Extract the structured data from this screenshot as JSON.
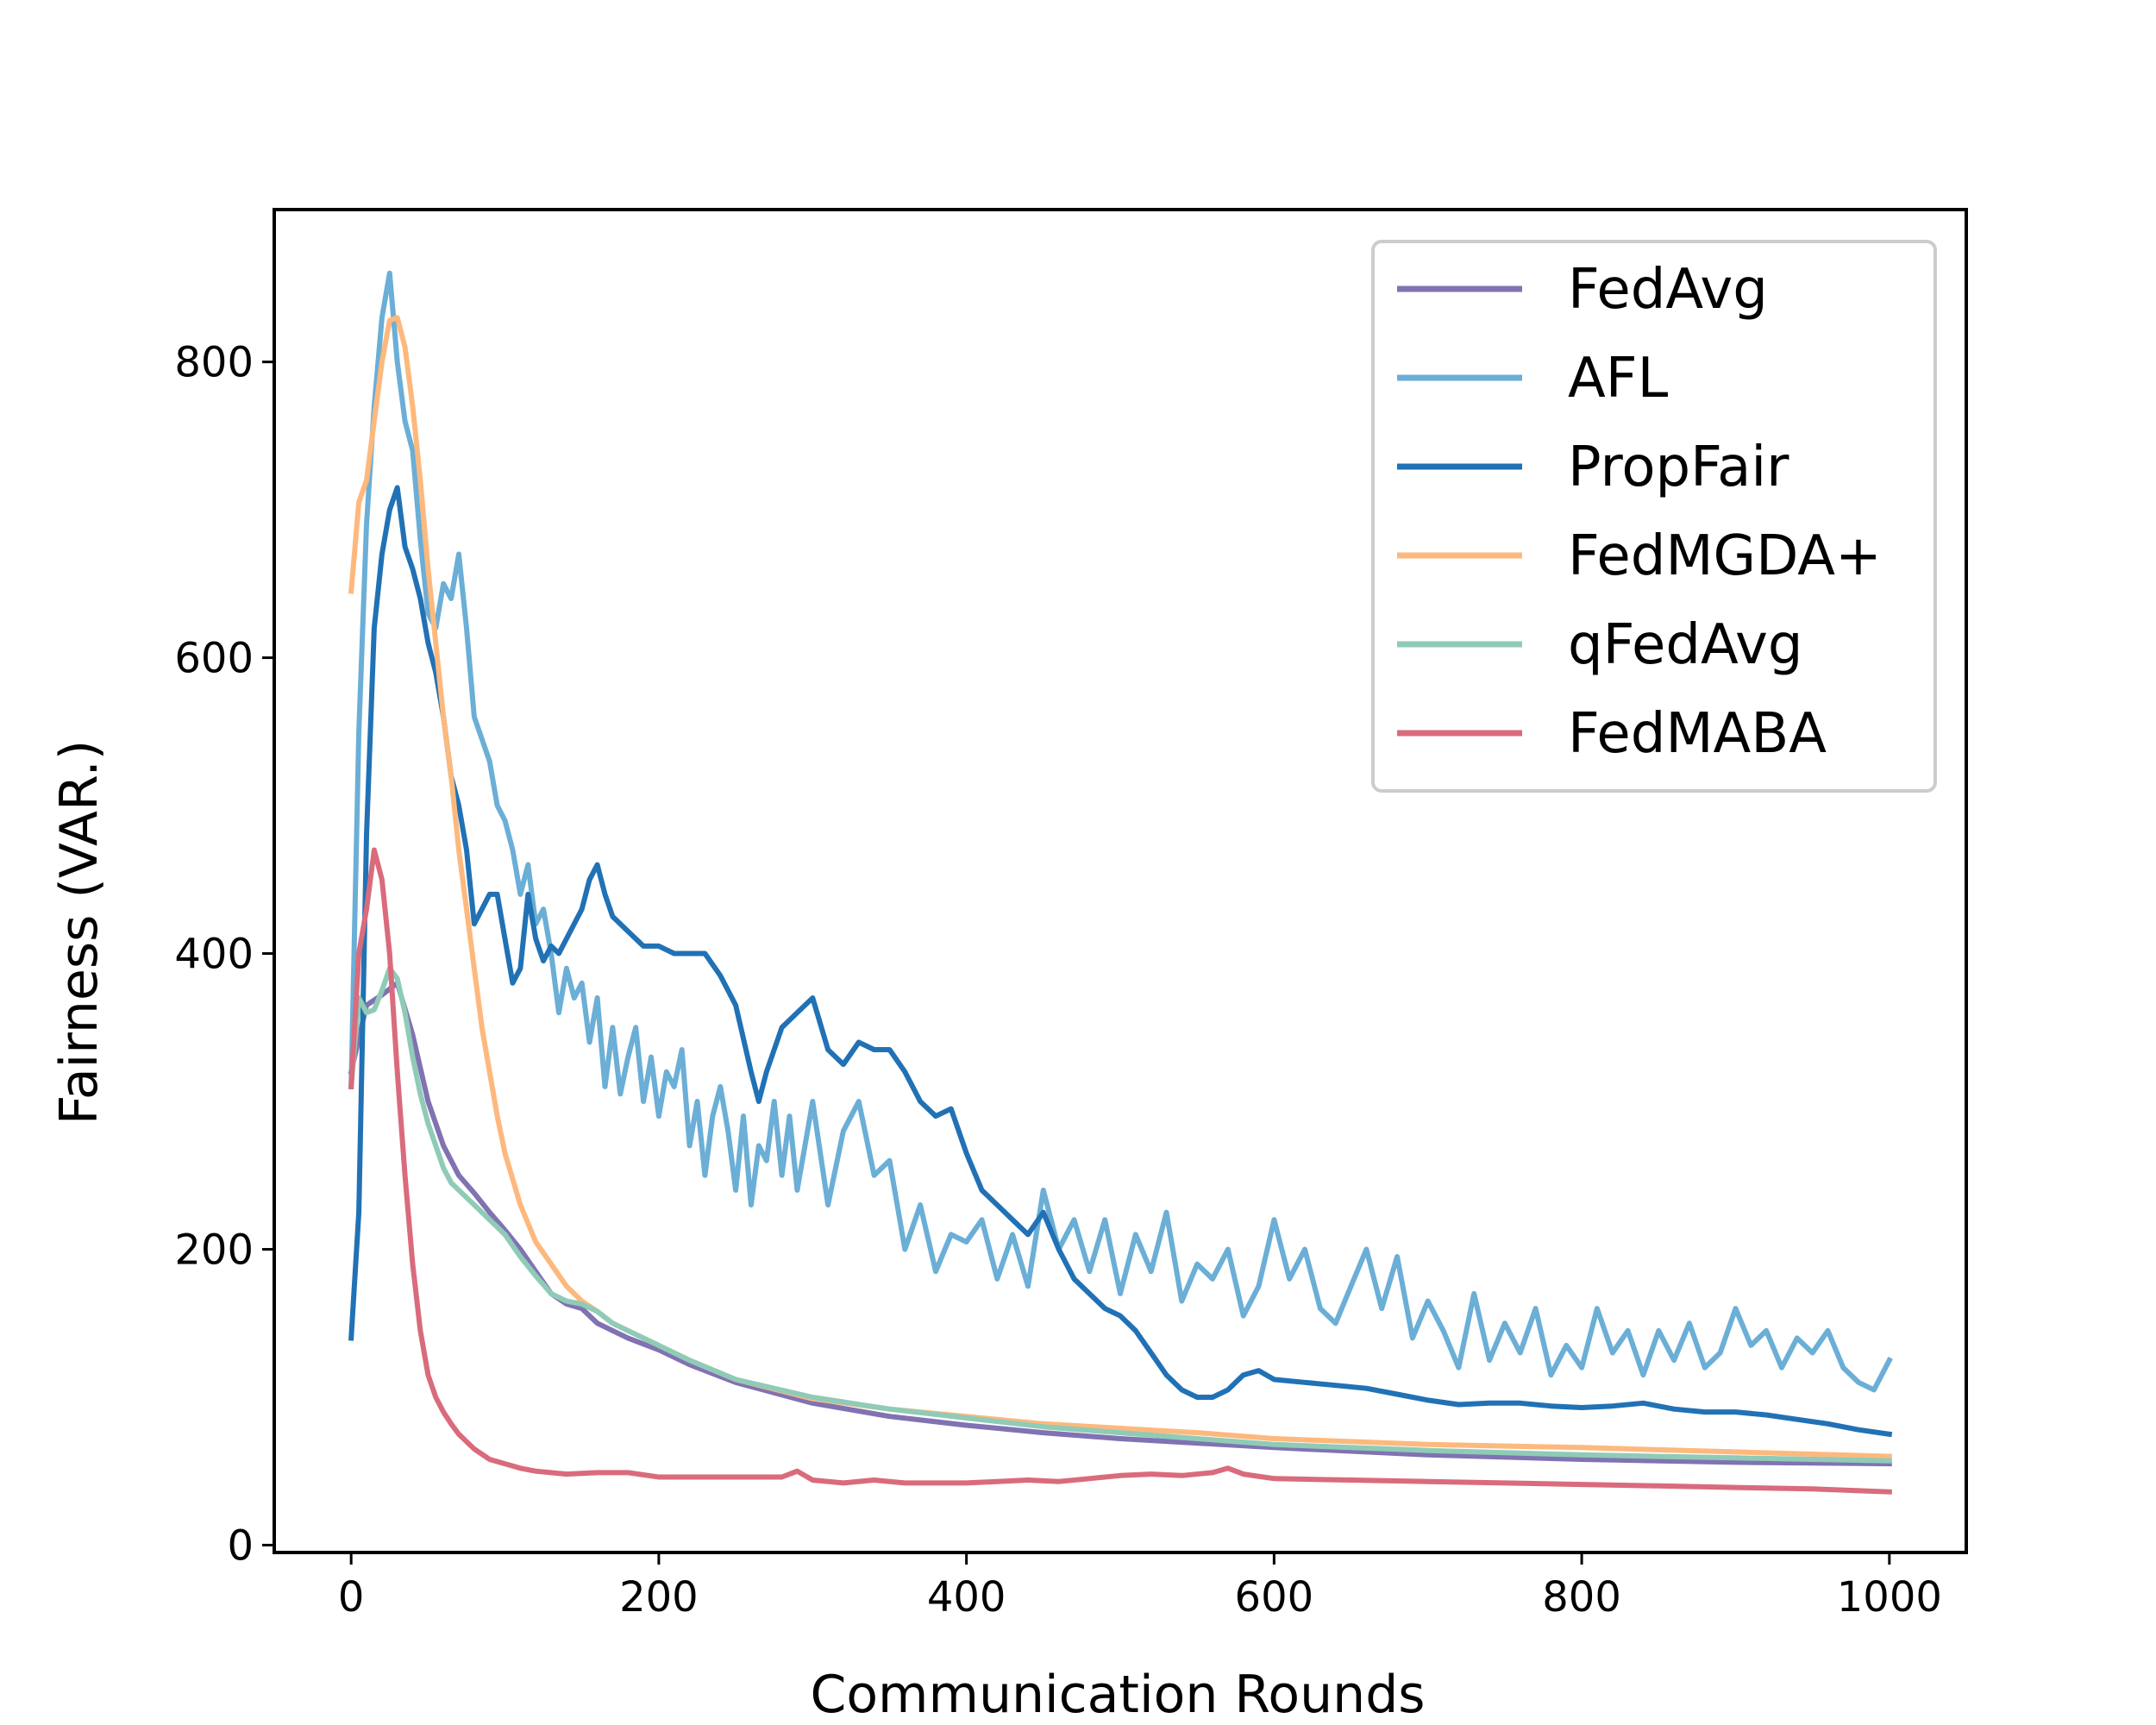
{
  "chart_data": {
    "type": "line",
    "title": "",
    "xlabel": "Communication Rounds",
    "ylabel": "Fairness (VAR.)",
    "xlim": [
      -50,
      1050
    ],
    "ylim": [
      -5,
      903
    ],
    "xticks": [
      0,
      200,
      400,
      600,
      800,
      1000
    ],
    "yticks": [
      0,
      200,
      400,
      600,
      800
    ],
    "grid": false,
    "legend_position": "top-right",
    "series": [
      {
        "name": "FedAvg",
        "color": "#8172b2",
        "x": [
          0,
          10,
          20,
          30,
          40,
          50,
          60,
          70,
          80,
          90,
          100,
          110,
          120,
          130,
          140,
          150,
          160,
          180,
          200,
          220,
          250,
          300,
          350,
          400,
          450,
          500,
          600,
          700,
          800,
          900,
          1000
        ],
        "y": [
          320,
          365,
          372,
          380,
          345,
          300,
          270,
          250,
          238,
          225,
          213,
          200,
          185,
          170,
          163,
          160,
          150,
          140,
          132,
          122,
          110,
          96,
          87,
          81,
          76,
          72,
          66,
          61,
          58,
          56,
          55
        ]
      },
      {
        "name": "AFL",
        "color": "#6baed6",
        "x": [
          0,
          5,
          10,
          15,
          20,
          25,
          30,
          35,
          40,
          45,
          50,
          55,
          60,
          65,
          70,
          75,
          80,
          85,
          90,
          95,
          100,
          105,
          110,
          115,
          120,
          125,
          130,
          135,
          140,
          145,
          150,
          155,
          160,
          165,
          170,
          175,
          180,
          185,
          190,
          195,
          200,
          205,
          210,
          215,
          220,
          225,
          230,
          235,
          240,
          245,
          250,
          255,
          260,
          265,
          270,
          275,
          280,
          285,
          290,
          295,
          300,
          310,
          320,
          330,
          340,
          350,
          360,
          370,
          380,
          390,
          400,
          410,
          420,
          430,
          440,
          450,
          460,
          470,
          480,
          490,
          500,
          510,
          520,
          530,
          540,
          550,
          560,
          570,
          580,
          590,
          600,
          610,
          620,
          630,
          640,
          650,
          660,
          670,
          680,
          690,
          700,
          710,
          720,
          730,
          740,
          750,
          760,
          770,
          780,
          790,
          800,
          810,
          820,
          830,
          840,
          850,
          860,
          870,
          880,
          890,
          900,
          910,
          920,
          930,
          940,
          950,
          960,
          970,
          980,
          990,
          1000
        ],
        "y": [
          310,
          550,
          690,
          770,
          830,
          860,
          800,
          760,
          740,
          680,
          630,
          620,
          650,
          640,
          670,
          620,
          560,
          545,
          530,
          500,
          490,
          470,
          440,
          460,
          420,
          430,
          400,
          360,
          390,
          370,
          380,
          340,
          370,
          310,
          350,
          305,
          330,
          350,
          300,
          330,
          290,
          320,
          310,
          335,
          270,
          300,
          250,
          290,
          310,
          280,
          240,
          290,
          230,
          270,
          260,
          300,
          250,
          290,
          240,
          270,
          300,
          230,
          280,
          300,
          250,
          260,
          200,
          230,
          185,
          210,
          205,
          220,
          180,
          210,
          175,
          240,
          200,
          220,
          185,
          220,
          170,
          210,
          185,
          225,
          165,
          190,
          180,
          200,
          155,
          175,
          220,
          180,
          200,
          160,
          150,
          175,
          200,
          160,
          195,
          140,
          165,
          145,
          120,
          170,
          125,
          150,
          130,
          160,
          115,
          135,
          120,
          160,
          130,
          145,
          115,
          145,
          125,
          150,
          120,
          130,
          160,
          135,
          145,
          120,
          140,
          130,
          145,
          120,
          110,
          105,
          125
        ]
      },
      {
        "name": "PropFair",
        "color": "#2171b5",
        "x": [
          0,
          5,
          10,
          15,
          20,
          25,
          30,
          35,
          40,
          45,
          50,
          55,
          60,
          65,
          70,
          75,
          80,
          85,
          90,
          95,
          100,
          105,
          110,
          115,
          120,
          125,
          130,
          135,
          140,
          145,
          150,
          155,
          160,
          165,
          170,
          180,
          190,
          200,
          210,
          220,
          230,
          240,
          250,
          260,
          265,
          270,
          280,
          290,
          300,
          310,
          320,
          330,
          340,
          350,
          360,
          370,
          380,
          390,
          400,
          410,
          420,
          430,
          440,
          450,
          460,
          470,
          480,
          490,
          500,
          510,
          520,
          530,
          540,
          550,
          560,
          570,
          580,
          590,
          600,
          620,
          640,
          660,
          680,
          700,
          720,
          740,
          760,
          780,
          800,
          820,
          840,
          860,
          880,
          900,
          920,
          940,
          960,
          980,
          1000
        ],
        "y": [
          140,
          225,
          480,
          620,
          670,
          700,
          715,
          675,
          660,
          640,
          610,
          590,
          560,
          520,
          500,
          470,
          420,
          430,
          440,
          440,
          410,
          380,
          390,
          440,
          410,
          395,
          405,
          400,
          410,
          420,
          430,
          450,
          460,
          440,
          425,
          415,
          405,
          405,
          400,
          400,
          400,
          385,
          365,
          320,
          300,
          320,
          350,
          360,
          370,
          335,
          325,
          340,
          335,
          335,
          320,
          300,
          290,
          295,
          265,
          240,
          230,
          220,
          210,
          225,
          200,
          180,
          170,
          160,
          155,
          145,
          130,
          115,
          105,
          100,
          100,
          105,
          115,
          118,
          112,
          110,
          108,
          106,
          102,
          98,
          95,
          96,
          96,
          94,
          93,
          94,
          96,
          92,
          90,
          90,
          88,
          85,
          82,
          78,
          75
        ]
      },
      {
        "name": "FedMGDA+",
        "color": "#fdb97d",
        "x": [
          0,
          5,
          10,
          15,
          20,
          25,
          30,
          35,
          40,
          45,
          50,
          55,
          60,
          65,
          70,
          75,
          80,
          85,
          90,
          95,
          100,
          110,
          120,
          130,
          140,
          150,
          160,
          170,
          180,
          200,
          220,
          250,
          300,
          350,
          400,
          450,
          500,
          550,
          600,
          700,
          800,
          900,
          1000
        ],
        "y": [
          645,
          705,
          720,
          760,
          800,
          828,
          830,
          810,
          770,
          720,
          660,
          610,
          560,
          520,
          470,
          430,
          390,
          350,
          320,
          290,
          265,
          230,
          205,
          190,
          175,
          165,
          158,
          150,
          145,
          135,
          125,
          112,
          99,
          92,
          87,
          82,
          79,
          76,
          72,
          68,
          66,
          63,
          60
        ]
      },
      {
        "name": "qFedAvg",
        "color": "#8fcbb7",
        "x": [
          0,
          5,
          10,
          15,
          20,
          25,
          30,
          35,
          40,
          45,
          50,
          55,
          60,
          65,
          70,
          75,
          80,
          90,
          100,
          110,
          120,
          130,
          140,
          150,
          160,
          170,
          180,
          200,
          220,
          250,
          300,
          350,
          400,
          450,
          500,
          550,
          600,
          700,
          800,
          900,
          1000
        ],
        "y": [
          310,
          370,
          360,
          362,
          375,
          390,
          383,
          360,
          330,
          305,
          285,
          270,
          255,
          245,
          240,
          235,
          230,
          220,
          210,
          195,
          182,
          170,
          165,
          163,
          158,
          150,
          145,
          135,
          125,
          112,
          100,
          92,
          86,
          80,
          76,
          72,
          68,
          64,
          61,
          59,
          57
        ]
      },
      {
        "name": "FedMABA",
        "color": "#d96b7c",
        "x": [
          0,
          5,
          10,
          15,
          20,
          25,
          30,
          35,
          40,
          45,
          50,
          55,
          60,
          65,
          70,
          80,
          90,
          100,
          110,
          120,
          140,
          160,
          180,
          200,
          220,
          250,
          280,
          290,
          300,
          320,
          340,
          360,
          380,
          400,
          420,
          440,
          460,
          480,
          500,
          520,
          540,
          560,
          570,
          580,
          600,
          650,
          700,
          750,
          800,
          850,
          900,
          950,
          1000
        ],
        "y": [
          310,
          400,
          430,
          470,
          450,
          400,
          320,
          250,
          190,
          145,
          115,
          100,
          90,
          82,
          75,
          65,
          58,
          55,
          52,
          50,
          48,
          49,
          49,
          46,
          46,
          46,
          46,
          50,
          44,
          42,
          44,
          42,
          42,
          42,
          43,
          44,
          43,
          45,
          47,
          48,
          47,
          49,
          52,
          48,
          45,
          44,
          43,
          42,
          41,
          40,
          39,
          38,
          36
        ]
      }
    ]
  }
}
